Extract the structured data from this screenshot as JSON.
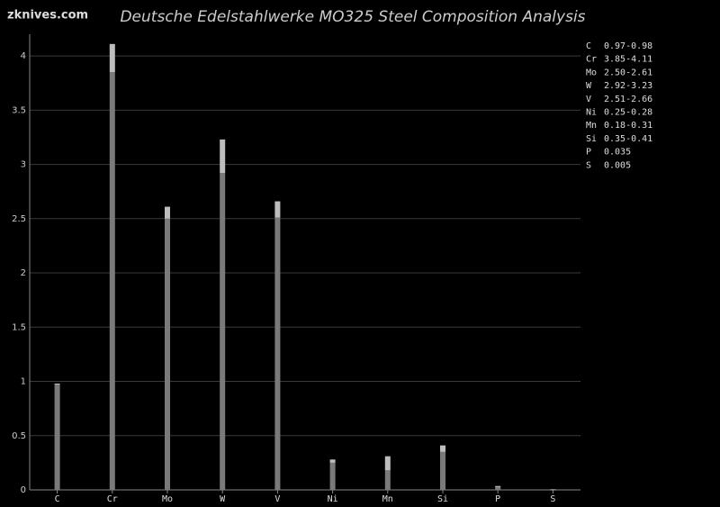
{
  "watermark": "zknives.com",
  "chart_data": {
    "type": "range-bar",
    "title": "Deutsche Edelstahlwerke MO325 Steel Composition Analysis",
    "categories": [
      "C",
      "Cr",
      "Mo",
      "W",
      "V",
      "Ni",
      "Mn",
      "Si",
      "P",
      "S"
    ],
    "min_values": [
      0.97,
      3.85,
      2.5,
      2.92,
      2.51,
      0.25,
      0.18,
      0.35,
      0.035,
      0.005
    ],
    "max_values": [
      0.98,
      4.11,
      2.61,
      3.23,
      2.66,
      0.28,
      0.31,
      0.41,
      0.035,
      0.005
    ],
    "value_labels": [
      "0.97-0.98",
      "3.85-4.11",
      "2.50-2.61",
      "2.92-3.23",
      "2.51-2.66",
      "0.25-0.28",
      "0.18-0.31",
      "0.35-0.41",
      "0.035",
      "0.005"
    ],
    "color": "#7a7a7a",
    "range_color": "#bdbdbd",
    "ylim": [
      0,
      4.2
    ],
    "yticks": [
      0,
      0.5,
      1,
      1.5,
      2,
      2.5,
      3,
      3.5,
      4
    ],
    "grid": true
  }
}
